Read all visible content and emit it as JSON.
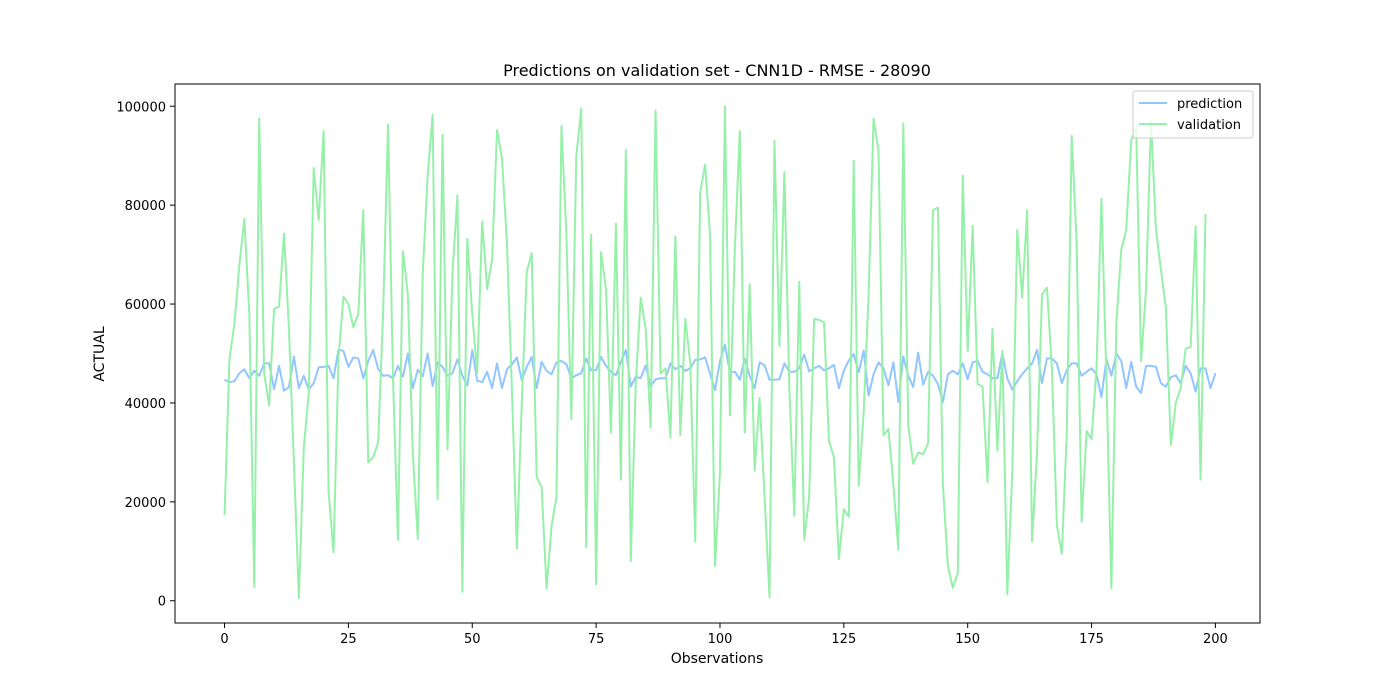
{
  "chart_data": {
    "type": "line",
    "title": "Predictions on validation set - CNN1D - RMSE - 28090",
    "xlabel": "Observations",
    "ylabel": "ACTUAL",
    "xlim": [
      -10,
      209
    ],
    "ylim": [
      -4500,
      104500
    ],
    "xticks": [
      0,
      25,
      50,
      75,
      100,
      125,
      150,
      175,
      200
    ],
    "yticks": [
      0,
      20000,
      40000,
      60000,
      80000,
      100000
    ],
    "grid": false,
    "legend_position": "top-right",
    "series": [
      {
        "name": "prediction",
        "color": "#92c6ff",
        "values": [
          44700,
          44200,
          44400,
          46000,
          46800,
          45000,
          46500,
          45500,
          48000,
          48000,
          42800,
          47500,
          42500,
          43200,
          49400,
          43000,
          45500,
          42700,
          44000,
          47200,
          47300,
          47500,
          45000,
          50800,
          50500,
          47300,
          49200,
          49000,
          45000,
          48500,
          50700,
          46900,
          45500,
          45600,
          45000,
          47500,
          45300,
          50000,
          43000,
          46700,
          45400,
          50000,
          43400,
          48200,
          47300,
          45500,
          46000,
          48800,
          45500,
          43500,
          50700,
          44500,
          44200,
          46300,
          43000,
          48000,
          43000,
          46800,
          47800,
          49200,
          44600,
          47300,
          49300,
          43000,
          48300,
          46500,
          45800,
          48200,
          48500,
          47800,
          45000,
          45600,
          46000,
          49000,
          46600,
          46600,
          49300,
          47500,
          46300,
          45600,
          48300,
          50700,
          43300,
          45300,
          45000,
          47600,
          43300,
          44800,
          45000,
          45000,
          48000,
          46800,
          47500,
          46500,
          47000,
          48700,
          48800,
          49200,
          45900,
          42600,
          48500,
          51800,
          46200,
          46300,
          44700,
          49000,
          45500,
          43000,
          48200,
          47600,
          44700,
          44700,
          44800,
          48000,
          46300,
          46300,
          47000,
          49800,
          46400,
          47000,
          47500,
          46600,
          47000,
          47700,
          43000,
          46500,
          48600,
          49900,
          46200,
          50600,
          41500,
          45800,
          48200,
          47000,
          43600,
          48200,
          40200,
          49400,
          45500,
          43200,
          50200,
          43700,
          46300,
          45500,
          43800,
          40200,
          45800,
          46500,
          45800,
          48000,
          44800,
          48200,
          48500,
          46300,
          45800,
          45000,
          45000,
          50000,
          45000,
          42700,
          44400,
          45800,
          47000,
          48000,
          50700,
          44000,
          49000,
          49000,
          48000,
          44000,
          46700,
          48000,
          48000,
          45500,
          46300,
          47000,
          45800,
          41200,
          48800,
          45500,
          50000,
          48500,
          43000,
          48300,
          43300,
          42000,
          47500,
          47500,
          47300,
          44000,
          43300,
          45200,
          45600,
          44000,
          47500,
          46000,
          42300,
          47000,
          47000,
          43000,
          46000
        ]
      },
      {
        "name": "validation",
        "color": "#97f0aa",
        "values": [
          17300,
          49000,
          56000,
          68000,
          77300,
          58000,
          2800,
          97500,
          46000,
          39500,
          59000,
          59500,
          74300,
          55000,
          28000,
          500,
          31000,
          42000,
          87500,
          77000,
          95000,
          22000,
          9800,
          49000,
          61500,
          60000,
          55300,
          58000,
          79000,
          28000,
          29000,
          32000,
          58000,
          96300,
          45000,
          12300,
          70700,
          62000,
          30000,
          12500,
          66000,
          86000,
          98300,
          20500,
          94200,
          30600,
          66000,
          82000,
          1800,
          73200,
          58000,
          46000,
          76700,
          63000,
          69000,
          95200,
          89500,
          72300,
          43000,
          10600,
          40000,
          66500,
          70300,
          25000,
          23000,
          2500,
          15000,
          21000,
          96000,
          74000,
          36700,
          90000,
          99500,
          10800,
          74000,
          3300,
          70500,
          63000,
          34000,
          76300,
          24500,
          91200,
          8000,
          44000,
          61300,
          55000,
          35000,
          99200,
          46000,
          47000,
          33000,
          73700,
          33500,
          57000,
          48000,
          12000,
          82500,
          88200,
          74000,
          7000,
          26000,
          100000,
          37500,
          71000,
          95000,
          34000,
          64000,
          26300,
          41000,
          21000,
          700,
          93000,
          51500,
          86700,
          43000,
          17200,
          64500,
          12300,
          21000,
          57000,
          56800,
          56300,
          32300,
          29000,
          8400,
          18500,
          17000,
          89000,
          23200,
          38000,
          62000,
          97500,
          91000,
          33500,
          34700,
          23500,
          10300,
          96500,
          35500,
          27700,
          30000,
          29600,
          31800,
          79000,
          79500,
          23500,
          7000,
          2600,
          5600,
          86000,
          50500,
          75800,
          43800,
          43300,
          24000,
          55000,
          30400,
          50500,
          1300,
          26000,
          75000,
          61300,
          79000,
          12000,
          30000,
          62000,
          63300,
          47000,
          15300,
          9500,
          34000,
          94000,
          72000,
          16000,
          34300,
          32700,
          47000,
          81300,
          45000,
          2500,
          56000,
          71000,
          75000,
          93000,
          96000,
          48400,
          63000,
          97000,
          75000,
          67000,
          59200,
          31500,
          40000,
          43000,
          51000,
          51300,
          75700,
          24500,
          78200
        ]
      }
    ]
  }
}
